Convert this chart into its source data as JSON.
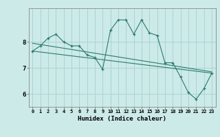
{
  "title": "",
  "xlabel": "Humidex (Indice chaleur)",
  "ylabel": "",
  "bg_color": "#cceae8",
  "grid_color": "#aad4d0",
  "line_color": "#2a7a6a",
  "x_ticks": [
    0,
    1,
    2,
    3,
    4,
    5,
    6,
    7,
    8,
    9,
    10,
    11,
    12,
    13,
    14,
    15,
    16,
    17,
    18,
    19,
    20,
    21,
    22,
    23
  ],
  "y_ticks": [
    6,
    7,
    8
  ],
  "ylim": [
    5.5,
    9.3
  ],
  "xlim": [
    -0.5,
    23.5
  ],
  "series1": {
    "x": [
      0,
      1,
      2,
      3,
      4,
      5,
      6,
      7,
      8,
      9,
      10,
      11,
      12,
      13,
      14,
      15,
      16,
      17,
      18,
      19,
      20,
      21,
      22,
      23
    ],
    "y": [
      7.65,
      7.85,
      8.15,
      8.3,
      8.0,
      7.85,
      7.85,
      7.5,
      7.4,
      6.95,
      8.45,
      8.85,
      8.85,
      8.3,
      8.85,
      8.35,
      8.25,
      7.2,
      7.2,
      6.65,
      6.05,
      5.8,
      6.2,
      6.8
    ]
  },
  "series2": {
    "x": [
      0,
      23
    ],
    "y": [
      7.95,
      6.85
    ]
  },
  "series3": {
    "x": [
      0,
      23
    ],
    "y": [
      7.65,
      6.8
    ]
  }
}
